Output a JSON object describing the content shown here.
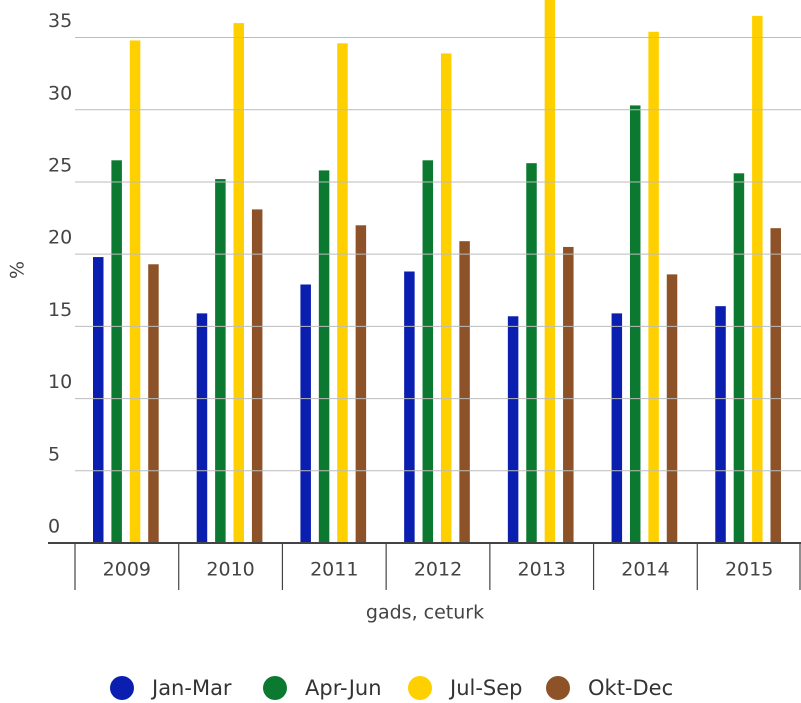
{
  "chart_data": {
    "type": "bar",
    "categories": [
      "2009",
      "2010",
      "2011",
      "2012",
      "2013",
      "2014",
      "2015"
    ],
    "series": [
      {
        "name": "Jan-Mar",
        "color": "#0a1fb0",
        "values": [
          19.8,
          15.9,
          17.9,
          18.8,
          15.7,
          15.9,
          16.4
        ]
      },
      {
        "name": "Apr-Jun",
        "color": "#0b7a30",
        "values": [
          26.5,
          25.2,
          25.8,
          26.5,
          26.3,
          30.3,
          25.6
        ]
      },
      {
        "name": "Jul-Sep",
        "color": "#ffd000",
        "values": [
          34.8,
          36.0,
          34.6,
          33.9,
          38.0,
          35.4,
          36.5
        ]
      },
      {
        "name": "Okt-Dec",
        "color": "#8e5228",
        "values": [
          19.3,
          23.1,
          22.0,
          20.9,
          20.5,
          18.6,
          21.8
        ]
      }
    ],
    "xlabel": "gads, ceturk",
    "ylabel": "%",
    "ylim": [
      0,
      37.6
    ],
    "yticks": [
      0,
      5,
      10,
      15,
      20,
      25,
      30,
      35
    ],
    "grid": true,
    "legend": "bottom"
  }
}
